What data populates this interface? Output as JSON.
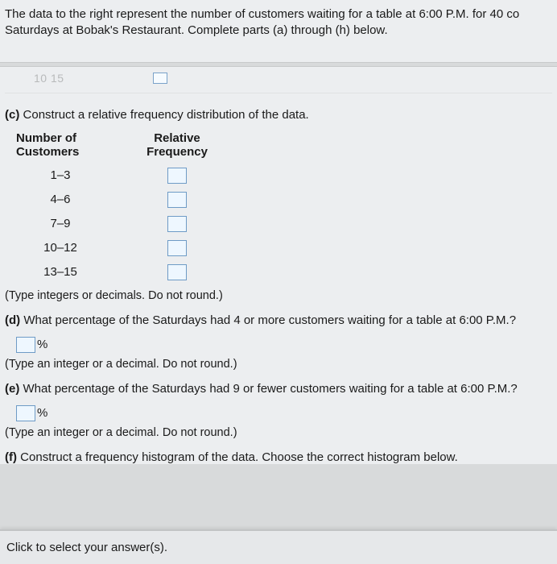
{
  "colors": {
    "page_bg": "#d8dadb",
    "block_bg": "#eceef0",
    "text": "#1a1a1a",
    "box_border": "#6e9bc6",
    "box_fill": "#eef7ff"
  },
  "prompt": {
    "line1": "The data to the right represent the number of customers waiting for a table at 6:00 P.M. for 40 co",
    "line2": "Saturdays at Bobak's Restaurant. Complete parts (a) through (h) below."
  },
  "partial_prev_label": "10 15",
  "part_c": {
    "label": "(c)",
    "text": "Construct a relative frequency distribution of the data.",
    "col1_header_l1": "Number of",
    "col1_header_l2": "Customers",
    "col2_header_l1": "Relative",
    "col2_header_l2": "Frequency",
    "rows": [
      "1–3",
      "4–6",
      "7–9",
      "10–12",
      "13–15"
    ],
    "hint": "(Type integers or decimals. Do not round.)"
  },
  "part_d": {
    "label": "(d)",
    "text": "What percentage of the Saturdays had 4 or more customers waiting for a table at 6:00 P.M.?",
    "unit": "%",
    "hint": "(Type an integer or a decimal. Do not round.)"
  },
  "part_e": {
    "label": "(e)",
    "text": "What percentage of the Saturdays had 9 or fewer customers waiting for a table at 6:00 P.M.?",
    "unit": "%",
    "hint": "(Type an integer or a decimal. Do not round.)"
  },
  "part_f": {
    "label": "(f)",
    "text": "Construct a frequency histogram of the data. Choose the correct histogram below."
  },
  "footer": "Click to select your answer(s)."
}
